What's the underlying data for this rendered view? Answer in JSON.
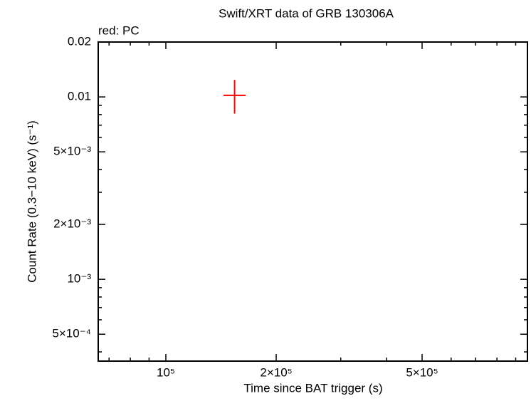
{
  "chart_data": {
    "type": "scatter",
    "title": "Swift/XRT data of GRB 130306A",
    "subtitle": "red: PC",
    "x_label": "Time since BAT trigger (s)",
    "y_label": "Count Rate (0.3−10 keV) (s⁻¹)",
    "log_x": true,
    "log_y": true,
    "xlim": [
      65400,
      969000
    ],
    "ylim": [
      0.000356,
      0.02
    ],
    "xticks": [
      {
        "value": 100000,
        "label": "10⁵"
      },
      {
        "value": 200000,
        "label": "2×10⁵"
      },
      {
        "value": 500000,
        "label": "5×10⁵"
      }
    ],
    "xminorticks": [
      70000,
      80000,
      90000,
      300000,
      400000,
      600000,
      700000,
      800000,
      900000
    ],
    "yticks": [
      {
        "value": 0.0005,
        "label": "5×10⁻⁴"
      },
      {
        "value": 0.001,
        "label": "10⁻³"
      },
      {
        "value": 0.002,
        "label": "2×10⁻³"
      },
      {
        "value": 0.005,
        "label": "5×10⁻³"
      },
      0.01,
      0.02
    ],
    "yminorticks": [
      0.0004,
      0.0006,
      0.0007,
      0.0008,
      0.0009,
      0.003,
      0.004,
      0.006,
      0.007,
      0.008,
      0.009
    ],
    "series": [
      {
        "name": "PC",
        "color": "#ff0000",
        "x": [
          154000
        ],
        "x_err_minus": [
          10400
        ],
        "x_err_plus": [
          11000
        ],
        "values": [
          0.0102
        ],
        "y_err_minus": [
          0.0021
        ],
        "y_err_plus": [
          0.0022
        ]
      }
    ]
  }
}
